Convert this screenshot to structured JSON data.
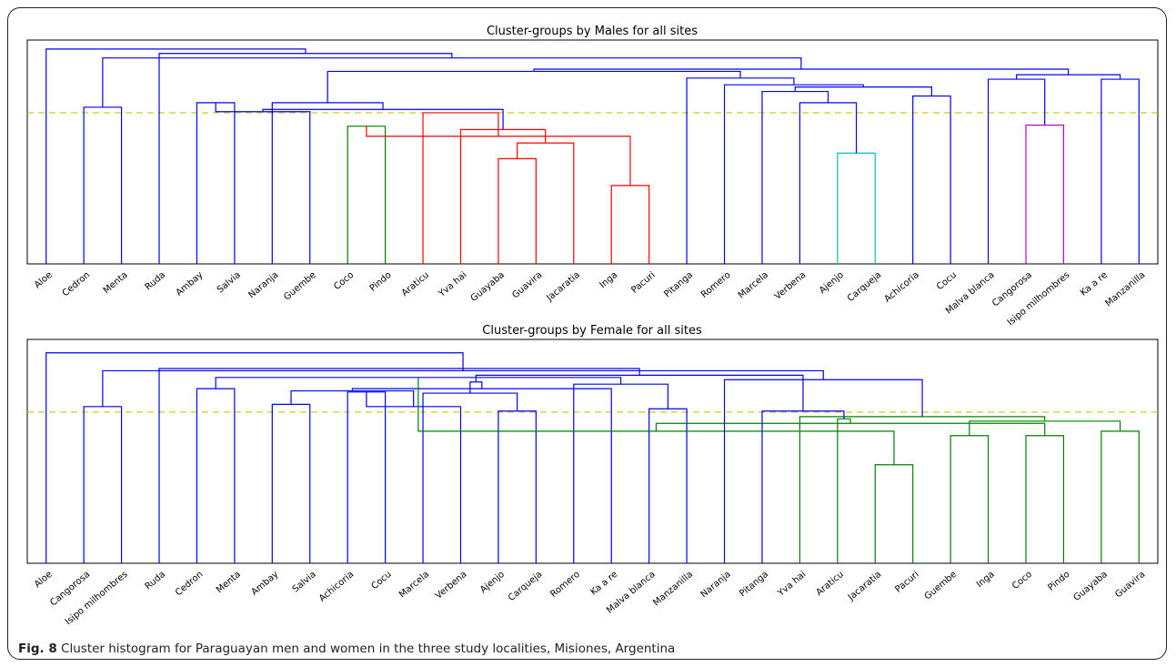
{
  "caption": {
    "label": "Fig. 8",
    "text": "Cluster histogram for Paraguayan men and women in the three study localities, Misiones, Argentina"
  },
  "colors": {
    "link": "#0000ff",
    "threshold": "#c8c800",
    "cluster_green": "#008000",
    "cluster_red": "#ff0000",
    "cluster_cyan": "#00bfbf",
    "cluster_magenta": "#bf00bf"
  },
  "chart_data": [
    {
      "type": "dendrogram",
      "title": "Cluster-groups by Males for all sites",
      "leaves": [
        "Aloe",
        "Cedron",
        "Menta",
        "Ruda",
        "Ambay",
        "Salvia",
        "Naranja",
        "Guembe",
        "Coco",
        "Pindo",
        "Araticu",
        "Yva hai",
        "Guayaba",
        "Guavira",
        "Jacaratia",
        "Inga",
        "Pacuri",
        "Pitanga",
        "Romero",
        "Marcela",
        "Verbena",
        "Ajenjo",
        "Carqueja",
        "Achicoria",
        "Cocu",
        "Malva blanca",
        "Cangorosa",
        "Isipo milhombres",
        "Ka a re",
        "Manzanilla"
      ],
      "ylim": [
        0,
        1
      ],
      "threshold": 0.675,
      "links": [
        {
          "a": "L1",
          "b": "L2",
          "h": 0.7,
          "c": "blue"
        },
        {
          "a": "L4",
          "b": "L5",
          "h": 0.72,
          "c": "blue"
        },
        {
          "a": "L8",
          "b": "L9",
          "h": 0.615,
          "c": "green"
        },
        {
          "a": "L12",
          "b": "L13",
          "h": 0.47,
          "c": "red"
        },
        {
          "a": "L15",
          "b": "L16",
          "h": 0.35,
          "c": "red"
        },
        {
          "a": "L14",
          "b": "N4",
          "h": 0.54,
          "c": "red"
        },
        {
          "a": "N3",
          "b": "N5",
          "h": 0.57,
          "c": "red"
        },
        {
          "a": "L11",
          "b": "N6",
          "h": 0.6,
          "c": "red"
        },
        {
          "a": "L10",
          "b": "N7",
          "h": 0.675,
          "c": "red"
        },
        {
          "a": "L7",
          "b": "N2",
          "h": 0.68,
          "c": "blue"
        },
        {
          "a": "N10",
          "b": "N8",
          "h": 0.69,
          "c": "blue"
        },
        {
          "a": "L6",
          "b": "N11",
          "h": 0.72,
          "c": "blue"
        },
        {
          "a": "L21",
          "b": "L22",
          "h": 0.495,
          "c": "cyan"
        },
        {
          "a": "L20",
          "b": "N13",
          "h": 0.72,
          "c": "blue"
        },
        {
          "a": "L19",
          "b": "N14",
          "h": 0.77,
          "c": "blue"
        },
        {
          "a": "L23",
          "b": "L24",
          "h": 0.75,
          "c": "blue"
        },
        {
          "a": "N15",
          "b": "N16",
          "h": 0.79,
          "c": "blue"
        },
        {
          "a": "L18",
          "b": "N17",
          "h": 0.8,
          "c": "blue"
        },
        {
          "a": "L17",
          "b": "N18",
          "h": 0.83,
          "c": "blue"
        },
        {
          "a": "N12",
          "b": "N19",
          "h": 0.86,
          "c": "blue"
        },
        {
          "a": "L26",
          "b": "L27",
          "h": 0.62,
          "c": "magenta"
        },
        {
          "a": "L25",
          "b": "N21",
          "h": 0.825,
          "c": "blue"
        },
        {
          "a": "L28",
          "b": "L29",
          "h": 0.825,
          "c": "blue"
        },
        {
          "a": "N22",
          "b": "N23",
          "h": 0.845,
          "c": "blue"
        },
        {
          "a": "N20",
          "b": "N24",
          "h": 0.87,
          "c": "blue"
        },
        {
          "a": "N1",
          "b": "N25",
          "h": 0.92,
          "c": "blue"
        },
        {
          "a": "L3",
          "b": "N26",
          "h": 0.94,
          "c": "blue"
        },
        {
          "a": "N27",
          "b": "L0",
          "h": 0.96,
          "c": "blue"
        }
      ]
    },
    {
      "type": "dendrogram",
      "title": "Cluster-groups by Female for all sites",
      "leaves": [
        "Aloe",
        "Cangorosa",
        "Isipo milhombres",
        "Ruda",
        "Cedron",
        "Menta",
        "Ambay",
        "Salvia",
        "Achicoria",
        "Cocu",
        "Marcela",
        "Verbena",
        "Ajenjo",
        "Carqueja",
        "Romero",
        "Ka a re",
        "Malva blanca",
        "Manzanilla",
        "Naranja",
        "Pitanga",
        "Yva hai",
        "Araticu",
        "Jacaratia",
        "Pacuri",
        "Guembe",
        "Inga",
        "Coco",
        "Pindo",
        "Guayaba",
        "Guavira"
      ],
      "ylim": [
        0,
        1
      ],
      "threshold": 0.675,
      "links": [
        {
          "a": "L1",
          "b": "L2",
          "h": 0.7,
          "c": "blue"
        },
        {
          "a": "L4",
          "b": "L5",
          "h": 0.78,
          "c": "blue"
        },
        {
          "a": "L6",
          "b": "L7",
          "h": 0.71,
          "c": "blue"
        },
        {
          "a": "L8",
          "b": "L9",
          "h": 0.765,
          "c": "blue"
        },
        {
          "a": "L12",
          "b": "L13",
          "h": 0.68,
          "c": "blue"
        },
        {
          "a": "L11",
          "b": "N4",
          "h": 0.7,
          "c": "blue"
        },
        {
          "a": "L10",
          "b": "N5",
          "h": 0.76,
          "c": "blue"
        },
        {
          "a": "N3",
          "b": "N6",
          "h": 0.77,
          "c": "blue"
        },
        {
          "a": "L16",
          "b": "L17",
          "h": 0.69,
          "c": "blue"
        },
        {
          "a": "L15",
          "b": "N8",
          "h": 0.78,
          "c": "blue"
        },
        {
          "a": "L14",
          "b": "N9",
          "h": 0.8,
          "c": "blue"
        },
        {
          "a": "N7",
          "b": "N10",
          "h": 0.81,
          "c": "blue"
        },
        {
          "a": "N2",
          "b": "N11",
          "h": 0.83,
          "c": "blue"
        },
        {
          "a": "L22",
          "b": "L23",
          "h": 0.44,
          "c": "green"
        },
        {
          "a": "L24",
          "b": "L25",
          "h": 0.57,
          "c": "green"
        },
        {
          "a": "N13",
          "b": "N14",
          "h": 0.59,
          "c": "green"
        },
        {
          "a": "L26",
          "b": "L27",
          "h": 0.57,
          "c": "green"
        },
        {
          "a": "L28",
          "b": "L29",
          "h": 0.59,
          "c": "green"
        },
        {
          "a": "N16",
          "b": "N17",
          "h": 0.625,
          "c": "green"
        },
        {
          "a": "N15",
          "b": "N18",
          "h": 0.635,
          "c": "green"
        },
        {
          "a": "L21",
          "b": "N19",
          "h": 0.645,
          "c": "green"
        },
        {
          "a": "L20",
          "b": "N20",
          "h": 0.655,
          "c": "green"
        },
        {
          "a": "L19",
          "b": "N21",
          "h": 0.68,
          "c": "blue"
        },
        {
          "a": "L18",
          "b": "N22",
          "h": 0.82,
          "c": "blue"
        },
        {
          "a": "N12",
          "b": "N23",
          "h": 0.84,
          "c": "blue"
        },
        {
          "a": "N1",
          "b": "N24",
          "h": 0.86,
          "c": "blue"
        },
        {
          "a": "L3",
          "b": "N25",
          "h": 0.87,
          "c": "blue"
        },
        {
          "a": "L0",
          "b": "N26",
          "h": 0.94,
          "c": "blue"
        }
      ]
    }
  ]
}
